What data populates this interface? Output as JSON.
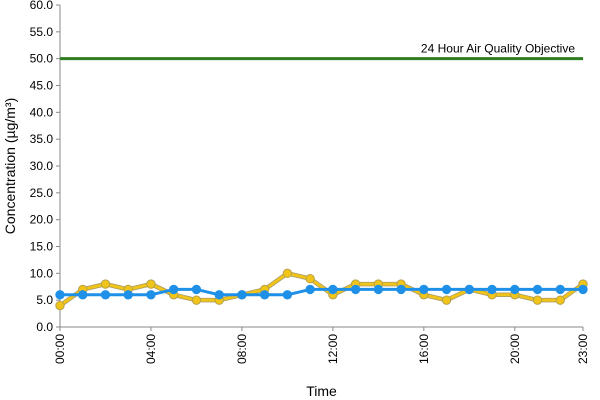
{
  "chart_data": {
    "type": "line",
    "xlabel": "Time",
    "ylabel": "Concentration (µg/m³)",
    "ylim": [
      0,
      60
    ],
    "y_ticks": [
      "0.0",
      "5.0",
      "10.0",
      "15.0",
      "20.0",
      "25.0",
      "30.0",
      "35.0",
      "40.0",
      "45.0",
      "50.0",
      "55.0",
      "60.0"
    ],
    "x_range": [
      0,
      23
    ],
    "x_tick_hours": [
      0,
      4,
      8,
      12,
      16,
      20,
      23
    ],
    "x_tick_labels": [
      "00:00",
      "04:00",
      "08:00",
      "12:00",
      "16:00",
      "20:00",
      "23:00"
    ],
    "grid": false,
    "x": [
      0,
      1,
      2,
      3,
      4,
      5,
      6,
      7,
      8,
      9,
      10,
      11,
      12,
      13,
      14,
      15,
      16,
      17,
      18,
      19,
      20,
      21,
      22,
      23
    ],
    "series": [
      {
        "color": "#f0c419",
        "values": [
          4,
          7,
          8,
          7,
          8,
          6,
          5,
          5,
          6,
          7,
          10,
          9,
          6,
          8,
          8,
          8,
          6,
          5,
          7,
          6,
          6,
          5,
          5,
          8
        ]
      },
      {
        "color": "#1e90e8",
        "values": [
          6,
          6,
          6,
          6,
          6,
          7,
          7,
          6,
          6,
          6,
          6,
          7,
          7,
          7,
          7,
          7,
          7,
          7,
          7,
          7,
          7,
          7,
          7,
          7
        ]
      }
    ],
    "reference_line": {
      "value": 50,
      "label": "24 Hour Air Quality Objective",
      "color": "#2e7d1f"
    }
  }
}
